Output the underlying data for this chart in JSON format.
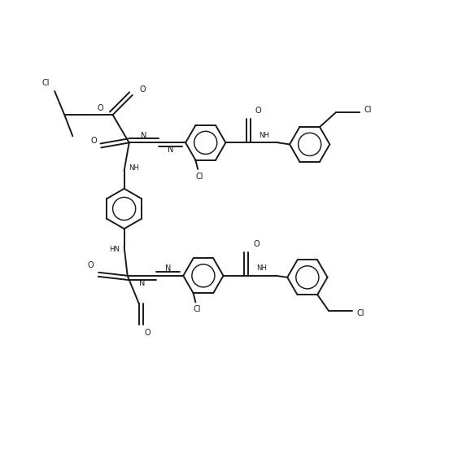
{
  "bg_color": "#ffffff",
  "line_color": "#1a1a1a",
  "lw": 1.4,
  "fs": 7.0,
  "fs_sm": 6.2,
  "figsize": [
    5.63,
    5.69
  ],
  "dpi": 100,
  "xlim": [
    0,
    10
  ],
  "ylim": [
    0,
    10
  ]
}
